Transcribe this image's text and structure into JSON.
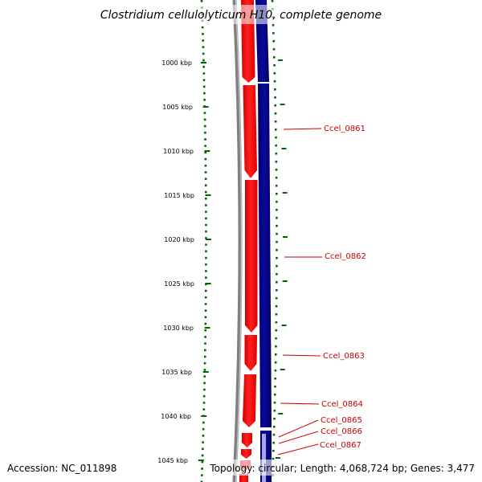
{
  "title": "Clostridium cellulolyticum H10, complete genome",
  "footer": {
    "accession": "Accession: NC_011898",
    "summary": "Topology: circular; Length: 4,068,724 bp; Genes: 3,477"
  },
  "ruler": {
    "unit": "kbp",
    "ticks": [
      "1000 kbp",
      "1005 kbp",
      "1010 kbp",
      "1015 kbp",
      "1020 kbp",
      "1025 kbp",
      "1030 kbp",
      "1035 kbp",
      "1040 kbp",
      "1045 kbp"
    ]
  },
  "genes": [
    "Ccel_0861",
    "Ccel_0862",
    "Ccel_0863",
    "Ccel_0864",
    "Ccel_0865",
    "Ccel_0866",
    "Ccel_0867"
  ],
  "colors": {
    "forward_strand": "#ff0000",
    "reverse_strand": "#000080",
    "backbone": "#808080",
    "ruler": "#006600",
    "gene_label": "#cc0000"
  }
}
